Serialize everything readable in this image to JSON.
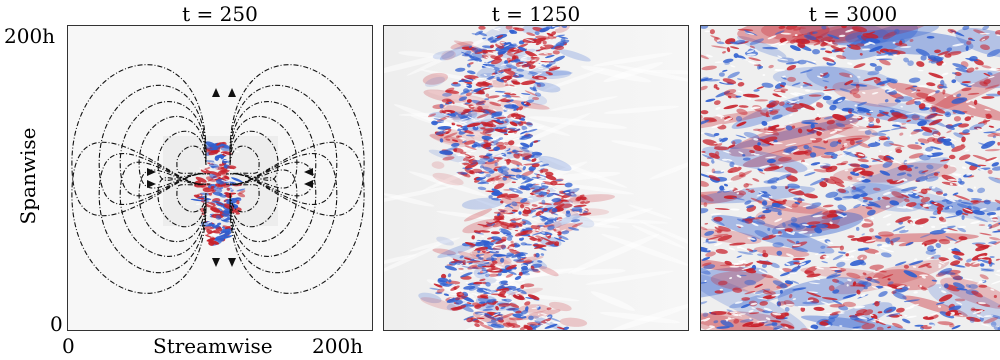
{
  "figure": {
    "panels": [
      {
        "title": "t = 250",
        "time": 250
      },
      {
        "title": "t = 1250",
        "time": 1250
      },
      {
        "title": "t = 3000",
        "time": 3000
      }
    ],
    "y_axis": {
      "label": "Spanwise",
      "tick_top": "200h",
      "tick_bottom": "0"
    },
    "x_axis": {
      "label": "Streamwise",
      "tick_left": "0",
      "tick_right": "200h"
    },
    "colors": {
      "positive": "#c8202a",
      "negative": "#2f5fd0",
      "neutral": "#f2f2f2",
      "streamline": "#111111"
    }
  }
}
